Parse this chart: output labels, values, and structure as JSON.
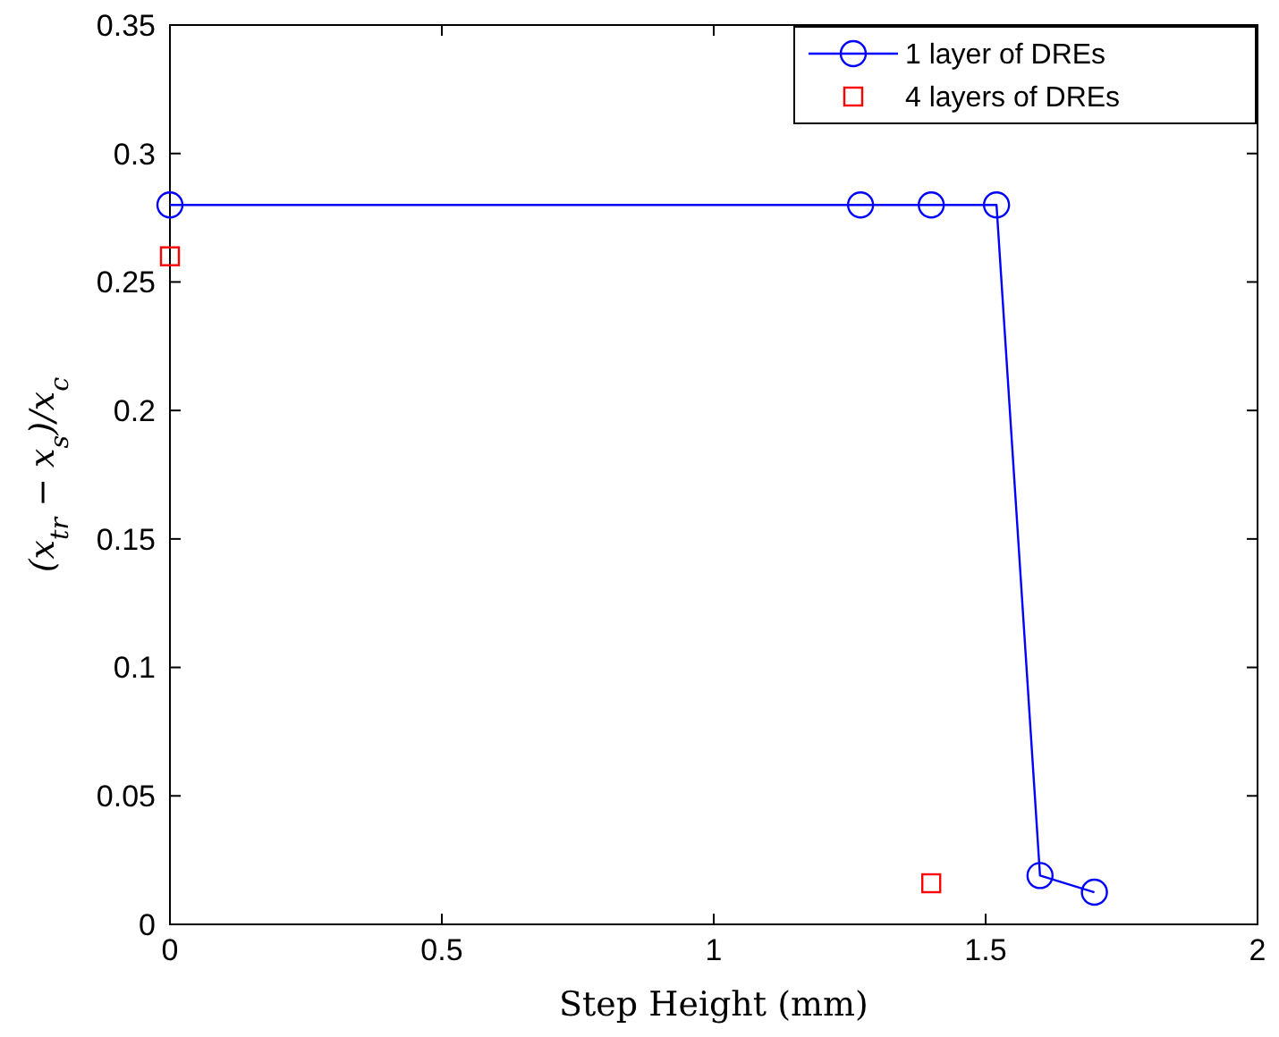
{
  "chart_data": {
    "type": "line",
    "xlabel": "Step Height (mm)",
    "ylabel": "(x$_{tr}$ − x$_{s}$)/x$_{c}$",
    "xlim": [
      0,
      2
    ],
    "xticks": [
      0,
      0.5,
      1,
      1.5,
      2
    ],
    "ylim": [
      0,
      0.35
    ],
    "yticks": [
      0,
      0.05,
      0.1,
      0.15,
      0.2,
      0.25,
      0.3,
      0.35
    ],
    "grid": false,
    "legend": "top right",
    "series": [
      {
        "name": "1 layer of DREs",
        "marker": "circle",
        "color": "#0000ff",
        "x": [
          0,
          1.27,
          1.4,
          1.52,
          1.6,
          1.7
        ],
        "values": [
          0.28,
          0.28,
          0.28,
          0.28,
          0.019,
          0.0125
        ]
      },
      {
        "name": "4 layers of DREs",
        "type": "scatter",
        "marker": "square",
        "color": "#ff0000",
        "x": [
          0,
          1.4
        ],
        "values": [
          0.26,
          0.016
        ]
      }
    ]
  }
}
